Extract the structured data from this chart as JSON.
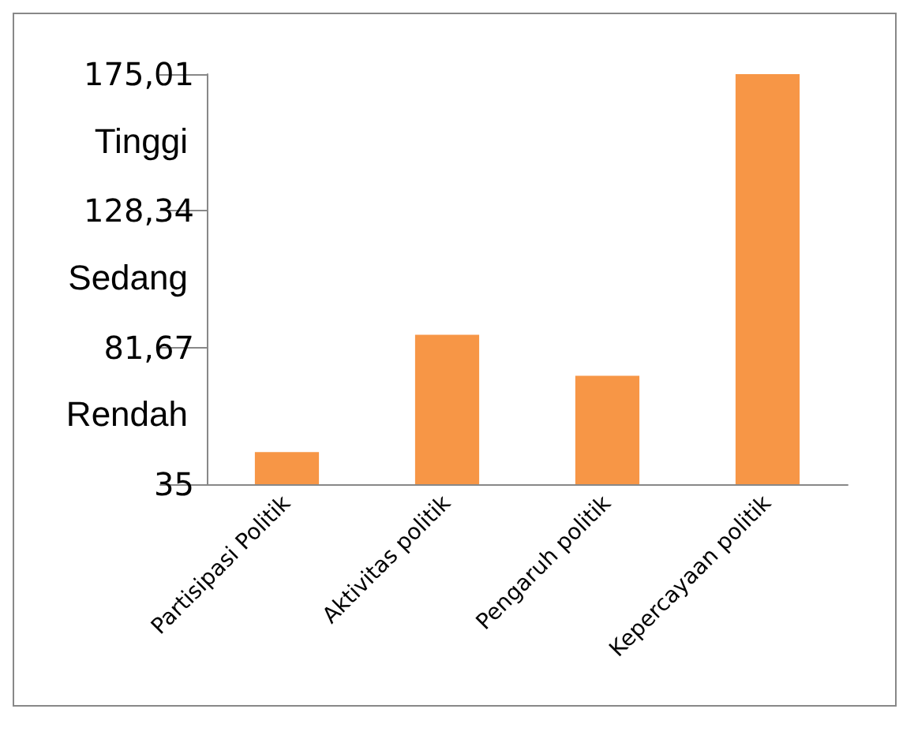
{
  "chart_data": {
    "type": "bar",
    "categories": [
      "Partisipasi Politik",
      "Aktivitas politik",
      "Pengaruh politik",
      "Kepercayaan politik"
    ],
    "values": [
      46,
      86,
      72,
      175
    ],
    "color": "#f79646",
    "ylim": [
      35,
      175.01
    ],
    "yticks": [
      35,
      {
        "value": 81.67,
        "label": "81,67"
      },
      {
        "value": 128.34,
        "label": "128,34"
      },
      {
        "value": 175.01,
        "label": "175,01"
      }
    ],
    "grid": false,
    "annotations": [
      "Tinggi",
      "Sedang",
      "Rendah"
    ]
  }
}
